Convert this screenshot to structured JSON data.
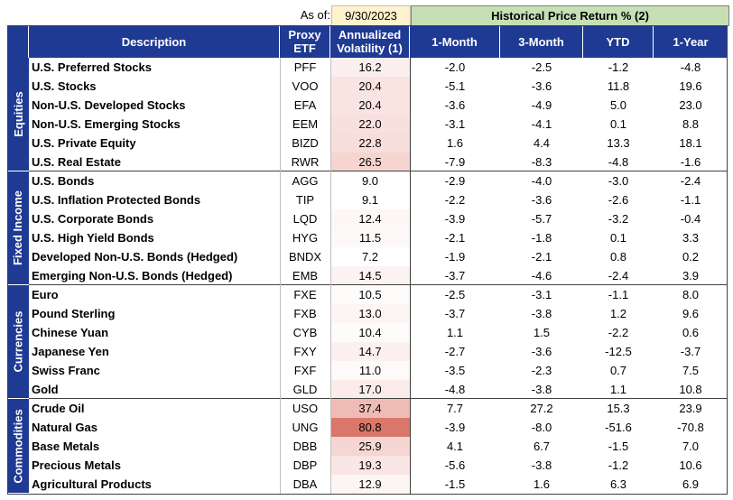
{
  "as_of_label": "As of:",
  "as_of_date": "9/30/2023",
  "historical_header": "Historical Price Return % (2)",
  "columns": {
    "description": "Description",
    "proxy_etf_line1": "Proxy",
    "proxy_etf_line2": "ETF",
    "volatility_line1": "Annualized",
    "volatility_line2": "Volatility (1)",
    "m1": "1-Month",
    "m3": "3-Month",
    "ytd": "YTD",
    "y1": "1-Year"
  },
  "groups": [
    {
      "name": "Equities",
      "rows": [
        {
          "desc": "U.S. Preferred Stocks",
          "etf": "PFF",
          "vol": "16.2",
          "m1": "-2.0",
          "m3": "-2.5",
          "ytd": "-1.2",
          "y1": "-4.8",
          "vol_color": "#fbeeee"
        },
        {
          "desc": "U.S. Stocks",
          "etf": "VOO",
          "vol": "20.4",
          "m1": "-5.1",
          "m3": "-3.6",
          "ytd": "11.8",
          "y1": "19.6",
          "vol_color": "#f9e4e2"
        },
        {
          "desc": "Non-U.S. Developed Stocks",
          "etf": "EFA",
          "vol": "20.4",
          "m1": "-3.6",
          "m3": "-4.9",
          "ytd": "5.0",
          "y1": "23.0",
          "vol_color": "#f9e4e2"
        },
        {
          "desc": "Non-U.S. Emerging Stocks",
          "etf": "EEM",
          "vol": "22.0",
          "m1": "-3.1",
          "m3": "-4.1",
          "ytd": "0.1",
          "y1": "8.8",
          "vol_color": "#f8e0de"
        },
        {
          "desc": "U.S. Private Equity",
          "etf": "BIZD",
          "vol": "22.8",
          "m1": "1.6",
          "m3": "4.4",
          "ytd": "13.3",
          "y1": "18.1",
          "vol_color": "#f8dedb"
        },
        {
          "desc": "U.S. Real Estate",
          "etf": "RWR",
          "vol": "26.5",
          "m1": "-7.9",
          "m3": "-8.3",
          "ytd": "-4.8",
          "y1": "-1.6",
          "vol_color": "#f6d5d1"
        }
      ]
    },
    {
      "name": "Fixed Income",
      "rows": [
        {
          "desc": "U.S. Bonds",
          "etf": "AGG",
          "vol": "9.0",
          "m1": "-2.9",
          "m3": "-4.0",
          "ytd": "-3.0",
          "y1": "-2.4",
          "vol_color": "#ffffff"
        },
        {
          "desc": "U.S. Inflation Protected Bonds",
          "etf": "TIP",
          "vol": "9.1",
          "m1": "-2.2",
          "m3": "-3.6",
          "ytd": "-2.6",
          "y1": "-1.1",
          "vol_color": "#ffffff"
        },
        {
          "desc": "U.S. Corporate Bonds",
          "etf": "LQD",
          "vol": "12.4",
          "m1": "-3.9",
          "m3": "-5.7",
          "ytd": "-3.2",
          "y1": "-0.4",
          "vol_color": "#fdf7f6"
        },
        {
          "desc": "U.S. High Yield Bonds",
          "etf": "HYG",
          "vol": "11.5",
          "m1": "-2.1",
          "m3": "-1.8",
          "ytd": "0.1",
          "y1": "3.3",
          "vol_color": "#fef9f9"
        },
        {
          "desc": "Developed Non-U.S. Bonds (Hedged)",
          "etf": "BNDX",
          "vol": "7.2",
          "m1": "-1.9",
          "m3": "-2.1",
          "ytd": "0.8",
          "y1": "0.2",
          "vol_color": "#ffffff"
        },
        {
          "desc": "Emerging Non-U.S. Bonds (Hedged)",
          "etf": "EMB",
          "vol": "14.5",
          "m1": "-3.7",
          "m3": "-4.6",
          "ytd": "-2.4",
          "y1": "3.9",
          "vol_color": "#fcf2f1"
        }
      ]
    },
    {
      "name": "Currencies",
      "rows": [
        {
          "desc": "Euro",
          "etf": "FXE",
          "vol": "10.5",
          "m1": "-2.5",
          "m3": "-3.1",
          "ytd": "-1.1",
          "y1": "8.0",
          "vol_color": "#fefbfb"
        },
        {
          "desc": "Pound Sterling",
          "etf": "FXB",
          "vol": "13.0",
          "m1": "-3.7",
          "m3": "-3.8",
          "ytd": "1.2",
          "y1": "9.6",
          "vol_color": "#fdf5f4"
        },
        {
          "desc": "Chinese Yuan",
          "etf": "CYB",
          "vol": "10.4",
          "m1": "1.1",
          "m3": "1.5",
          "ytd": "-2.2",
          "y1": "0.6",
          "vol_color": "#fefbfb"
        },
        {
          "desc": "Japanese Yen",
          "etf": "FXY",
          "vol": "14.7",
          "m1": "-2.7",
          "m3": "-3.6",
          "ytd": "-12.5",
          "y1": "-3.7",
          "vol_color": "#fcf1f0"
        },
        {
          "desc": "Swiss Franc",
          "etf": "FXF",
          "vol": "11.0",
          "m1": "-3.5",
          "m3": "-2.3",
          "ytd": "0.7",
          "y1": "7.5",
          "vol_color": "#fefafa"
        },
        {
          "desc": "Gold",
          "etf": "GLD",
          "vol": "17.0",
          "m1": "-4.8",
          "m3": "-3.8",
          "ytd": "1.1",
          "y1": "10.8",
          "vol_color": "#fbecea"
        }
      ]
    },
    {
      "name": "Commodities",
      "rows": [
        {
          "desc": "Crude Oil",
          "etf": "USO",
          "vol": "37.4",
          "m1": "7.7",
          "m3": "27.2",
          "ytd": "15.3",
          "y1": "23.9",
          "vol_color": "#efbcb5"
        },
        {
          "desc": "Natural Gas",
          "etf": "UNG",
          "vol": "80.8",
          "m1": "-3.9",
          "m3": "-8.0",
          "ytd": "-51.6",
          "y1": "-70.8",
          "vol_color": "#d9776a"
        },
        {
          "desc": "Base Metals",
          "etf": "DBB",
          "vol": "25.9",
          "m1": "4.1",
          "m3": "6.7",
          "ytd": "-1.5",
          "y1": "7.0",
          "vol_color": "#f6d6d2"
        },
        {
          "desc": "Precious Metals",
          "etf": "DBP",
          "vol": "19.3",
          "m1": "-5.6",
          "m3": "-3.8",
          "ytd": "-1.2",
          "y1": "10.6",
          "vol_color": "#fae6e4"
        },
        {
          "desc": "Agricultural Products",
          "etf": "DBA",
          "vol": "12.9",
          "m1": "-1.5",
          "m3": "1.6",
          "ytd": "6.3",
          "y1": "6.9",
          "vol_color": "#fdf5f4"
        }
      ]
    }
  ]
}
